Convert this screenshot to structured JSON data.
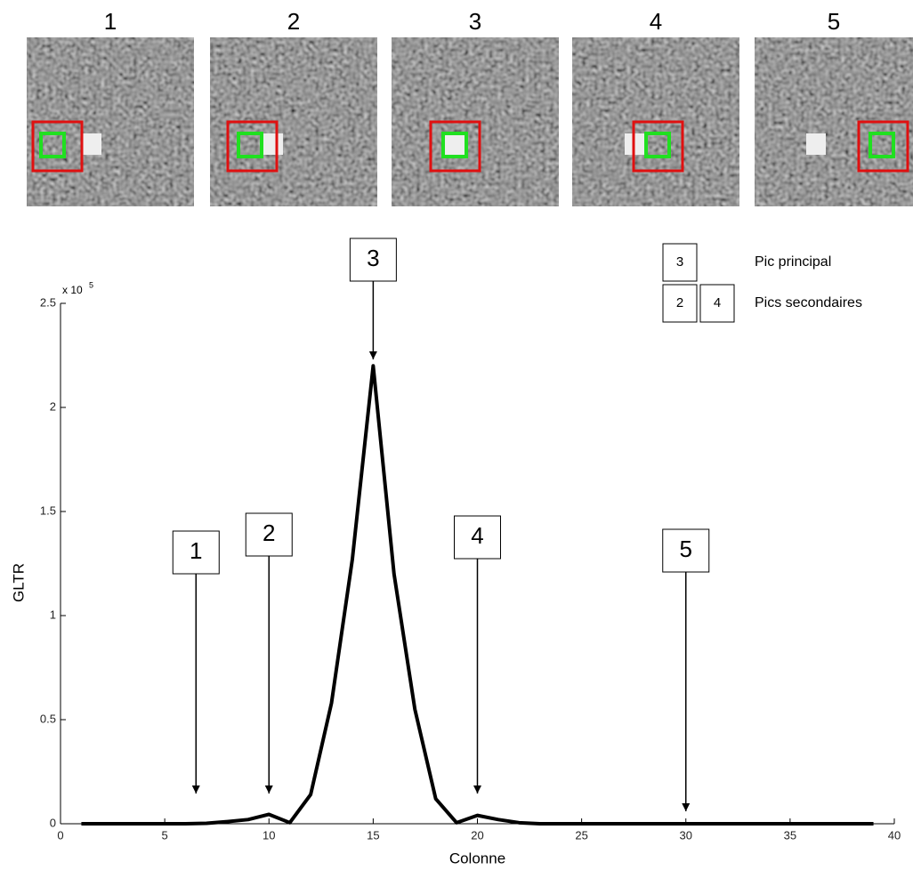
{
  "chart_data": {
    "type": "line",
    "frames": [
      {
        "label": "1"
      },
      {
        "label": "2"
      },
      {
        "label": "3"
      },
      {
        "label": "4"
      },
      {
        "label": "5"
      }
    ],
    "x_label": "Colonne",
    "y_label": "GLTR",
    "y_multiplier": {
      "base": "x 10",
      "exponent": "5"
    },
    "x": [
      1,
      2,
      3,
      4,
      5,
      6,
      7,
      8,
      9,
      10,
      11,
      12,
      13,
      14,
      15,
      16,
      17,
      18,
      19,
      20,
      21,
      22,
      23,
      24,
      25,
      26,
      27,
      28,
      29,
      30,
      31,
      32,
      33,
      34,
      35,
      36,
      37,
      38,
      39
    ],
    "series": [
      {
        "color": "#000000",
        "values": [
          0,
          0,
          0,
          0,
          0,
          0,
          0.002,
          0.01,
          0.02,
          0.045,
          0.005,
          0.14,
          0.58,
          1.27,
          2.2,
          1.2,
          0.55,
          0.12,
          0.005,
          0.04,
          0.02,
          0.005,
          0,
          0,
          0,
          0,
          0,
          0,
          0,
          0,
          0,
          0,
          0,
          0,
          0,
          0,
          0,
          0,
          0
        ]
      }
    ],
    "annotations": [
      {
        "text": "1",
        "x": 6.5
      },
      {
        "text": "2",
        "x": 10
      },
      {
        "text": "3",
        "x": 15
      },
      {
        "text": "4",
        "x": 20
      },
      {
        "text": "5",
        "x": 30
      }
    ],
    "legend": [
      {
        "boxes": [
          "3"
        ],
        "text": "Pic principal"
      },
      {
        "boxes": [
          "2",
          "4"
        ],
        "text": "Pics secondaires"
      }
    ],
    "xlim": [
      0,
      40
    ],
    "xticks": [
      0,
      5,
      10,
      15,
      20,
      25,
      30,
      35,
      40
    ],
    "ylim": [
      0,
      2.5
    ],
    "yticks": [
      0,
      0.5,
      1,
      1.5,
      2,
      2.5
    ]
  }
}
